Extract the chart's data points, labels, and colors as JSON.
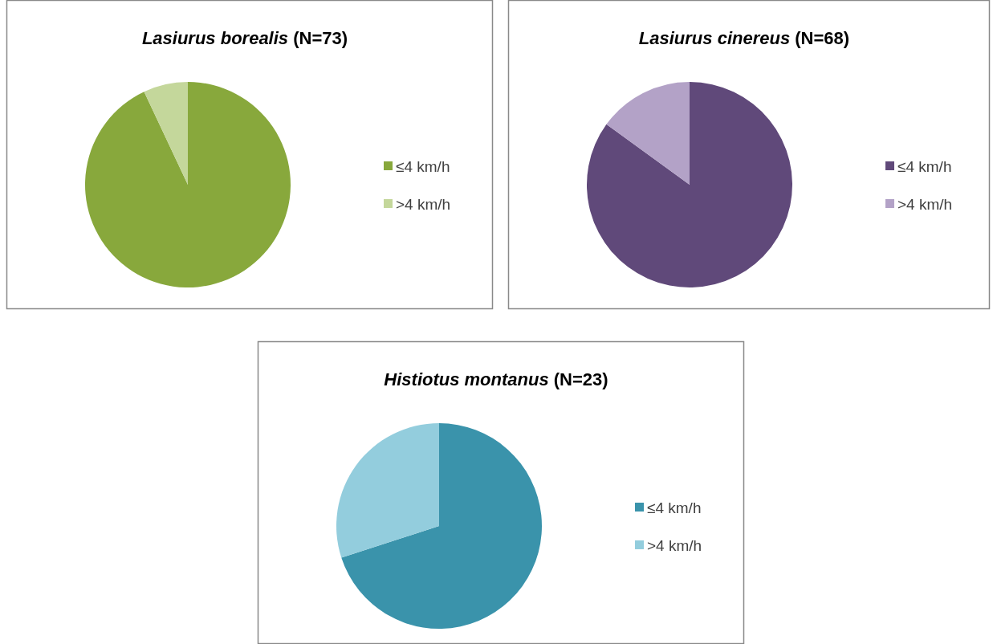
{
  "chart_data": [
    {
      "type": "pie",
      "title": "Lasiurus borealis (N=73)",
      "categories": [
        "≤4 km/h",
        ">4 km/h"
      ],
      "values": [
        93,
        7
      ],
      "colors": [
        "#88a83c",
        "#c4d79b"
      ],
      "legend": "right"
    },
    {
      "type": "pie",
      "title": "Lasiurus cinereus (N=68)",
      "categories": [
        "≤4 km/h",
        ">4 km/h"
      ],
      "values": [
        85,
        15
      ],
      "colors": [
        "#60497a",
        "#b3a2c7"
      ],
      "legend": "right"
    },
    {
      "type": "pie",
      "title": "Histiotus montanus (N=23)",
      "categories": [
        "≤4 km/h",
        ">4 km/h"
      ],
      "values": [
        70,
        30
      ],
      "colors": [
        "#3a93ab",
        "#93cddd"
      ],
      "legend": "right"
    }
  ]
}
